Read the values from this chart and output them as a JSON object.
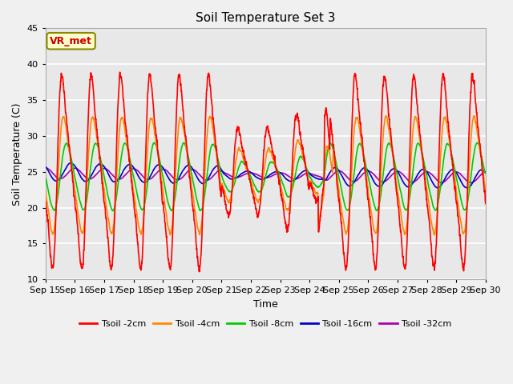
{
  "title": "Soil Temperature Set 3",
  "xlabel": "Time",
  "ylabel": "Soil Temperature (C)",
  "ylim": [
    10,
    45
  ],
  "xlim": [
    0,
    360
  ],
  "fig_bg_color": "#f0f0f0",
  "plot_bg_color": "#e8e8e8",
  "grid_color": "white",
  "annotation_text": "VR_met",
  "annotation_bg": "#ffffcc",
  "annotation_border": "#888800",
  "annotation_text_color": "#cc0000",
  "tick_labels": [
    "Sep 15",
    "Sep 16",
    "Sep 17",
    "Sep 18",
    "Sep 19",
    "Sep 20",
    "Sep 21",
    "Sep 22",
    "Sep 23",
    "Sep 24",
    "Sep 25",
    "Sep 26",
    "Sep 27",
    "Sep 28",
    "Sep 29",
    "Sep 30"
  ],
  "legend_entries": [
    "Tsoil -2cm",
    "Tsoil -4cm",
    "Tsoil -8cm",
    "Tsoil -16cm",
    "Tsoil -32cm"
  ],
  "line_colors": [
    "#ff0000",
    "#ff8800",
    "#00cc00",
    "#0000cc",
    "#aa00aa"
  ],
  "line_widths": [
    1.2,
    1.2,
    1.2,
    1.2,
    1.2
  ]
}
